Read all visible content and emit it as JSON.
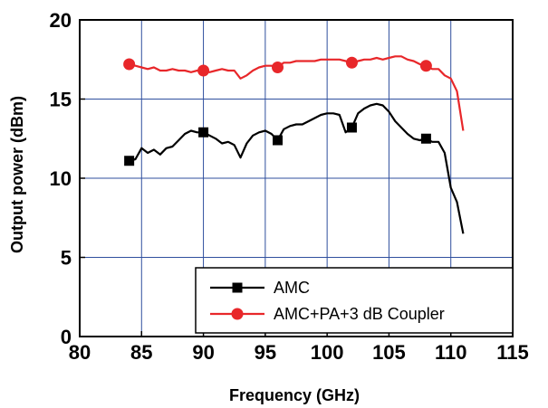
{
  "chart_data": {
    "type": "line",
    "xlabel": "Frequency (GHz)",
    "ylabel": "Output power (dBm)",
    "xlim": [
      80,
      115
    ],
    "ylim": [
      0,
      20
    ],
    "x_ticks": [
      80,
      85,
      90,
      95,
      100,
      105,
      110,
      115
    ],
    "y_ticks": [
      0,
      5,
      10,
      15,
      20
    ],
    "grid": true,
    "legend_position": "bottom-right",
    "series": [
      {
        "name": "AMC",
        "color": "#000000",
        "marker": "square",
        "x": [
          84,
          84.5,
          85,
          85.5,
          86,
          86.5,
          87,
          87.5,
          88,
          88.5,
          89,
          89.5,
          90,
          90.5,
          91,
          91.5,
          92,
          92.5,
          93,
          93.5,
          94,
          94.5,
          95,
          95.5,
          96,
          96.5,
          97,
          97.5,
          98,
          98.5,
          99,
          99.5,
          100,
          100.5,
          101,
          101.5,
          102,
          102.5,
          103,
          103.5,
          104,
          104.5,
          105,
          105.5,
          106,
          106.5,
          107,
          107.5,
          108,
          108.5,
          109,
          109.5,
          110,
          110.5,
          111
        ],
        "y": [
          11.1,
          11.2,
          11.9,
          11.6,
          11.8,
          11.5,
          11.9,
          12.0,
          12.4,
          12.8,
          13.0,
          12.9,
          12.9,
          12.7,
          12.5,
          12.2,
          12.3,
          12.1,
          11.3,
          12.2,
          12.7,
          12.9,
          13.0,
          12.8,
          12.4,
          13.1,
          13.3,
          13.4,
          13.4,
          13.6,
          13.8,
          14.0,
          14.1,
          14.1,
          14.0,
          12.9,
          13.2,
          14.1,
          14.4,
          14.6,
          14.7,
          14.6,
          14.2,
          13.6,
          13.2,
          12.8,
          12.5,
          12.4,
          12.5,
          12.3,
          12.3,
          11.6,
          9.4,
          8.5,
          6.5
        ],
        "markers_x": [
          84,
          90,
          96,
          102,
          108
        ],
        "markers_y": [
          11.1,
          12.9,
          12.4,
          13.2,
          12.5
        ]
      },
      {
        "name": "AMC+PA+3 dB Coupler",
        "color": "#e8272a",
        "marker": "circle",
        "x": [
          84,
          84.5,
          85,
          85.5,
          86,
          86.5,
          87,
          87.5,
          88,
          88.5,
          89,
          89.5,
          90,
          90.5,
          91,
          91.5,
          92,
          92.5,
          93,
          93.5,
          94,
          94.5,
          95,
          95.5,
          96,
          96.5,
          97,
          97.5,
          98,
          98.5,
          99,
          99.5,
          100,
          100.5,
          101,
          101.5,
          102,
          102.5,
          103,
          103.5,
          104,
          104.5,
          105,
          105.5,
          106,
          106.5,
          107,
          107.5,
          108,
          108.5,
          109,
          109.5,
          110,
          110.5,
          111
        ],
        "y": [
          17.2,
          17.1,
          17.0,
          16.9,
          17.0,
          16.8,
          16.8,
          16.9,
          16.8,
          16.8,
          16.7,
          16.8,
          16.8,
          16.7,
          16.8,
          16.9,
          16.8,
          16.8,
          16.3,
          16.5,
          16.8,
          17.0,
          17.1,
          17.1,
          17.0,
          17.3,
          17.3,
          17.4,
          17.4,
          17.4,
          17.4,
          17.5,
          17.5,
          17.5,
          17.5,
          17.4,
          17.3,
          17.4,
          17.5,
          17.5,
          17.6,
          17.5,
          17.6,
          17.7,
          17.7,
          17.5,
          17.4,
          17.2,
          17.1,
          16.9,
          16.9,
          16.5,
          16.3,
          15.5,
          13.0
        ],
        "markers_x": [
          84,
          90,
          96,
          102,
          108
        ],
        "markers_y": [
          17.2,
          16.8,
          17.0,
          17.3,
          17.1
        ]
      }
    ]
  }
}
